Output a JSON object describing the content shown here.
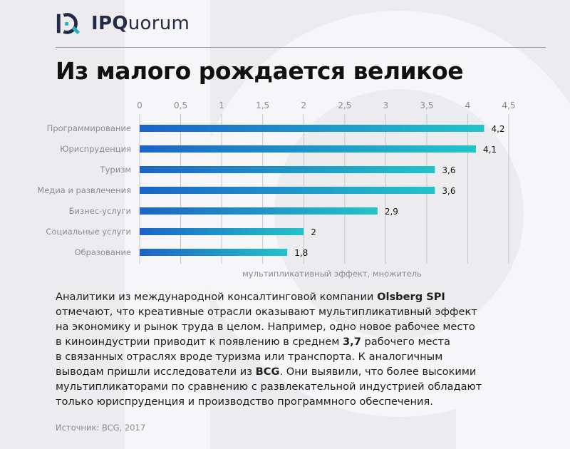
{
  "header": {
    "brand_bold": "IPQ",
    "brand_rest": "uorum"
  },
  "title": "Из малого рождается великое",
  "chart_data": {
    "type": "bar",
    "orientation": "horizontal",
    "categories": [
      "Программирование",
      "Юриспруденция",
      "Туризм",
      "Медиа и развлечения",
      "Бизнес-услуги",
      "Социальные услуги",
      "Образование"
    ],
    "values": [
      4.2,
      4.1,
      3.6,
      3.6,
      2.9,
      2,
      1.8
    ],
    "value_labels": [
      "4,2",
      "4,1",
      "3,6",
      "3,6",
      "2,9",
      "2",
      "1,8"
    ],
    "xlim": [
      0,
      4.5
    ],
    "ticks": [
      0,
      0.5,
      1,
      1.5,
      2,
      2.5,
      3,
      3.5,
      4,
      4.5
    ],
    "tick_labels": [
      "0",
      "0,5",
      "1",
      "1,5",
      "2",
      "2,5",
      "3",
      "3,5",
      "4",
      "4,5"
    ],
    "xlabel": "мультипликативный эффект, множитель",
    "grid": true,
    "tick_position": "top",
    "colors": {
      "bar_start": "#1b64c8",
      "bar_end": "#22c4c8",
      "grid": "#c6c6cc"
    }
  },
  "body": {
    "lines": [
      [
        "Аналитики из международной консалтинговой компании ",
        "**Olsberg SPI**"
      ],
      [
        "отмечают, что креативные отрасли оказывают мультипликативный эффект"
      ],
      [
        "на экономику и рынок труда в целом. Например, одно новое рабочее место"
      ],
      [
        "в киноиндустрии приводит к появлению в среднем ",
        "**3,7**",
        " рабочего места"
      ],
      [
        "в связанных отраслях вроде туризма или транспорта. К аналогичным"
      ],
      [
        "выводам пришли исследователи из ",
        "**BCG**",
        ". Они выявили, что более высокими"
      ],
      [
        "мультипликаторами по сравнению с развлекательной индустрией обладают"
      ],
      [
        "только юриспруденция и производство программного обеспечения."
      ]
    ]
  },
  "source": "Источник: BCG, 2017",
  "colors": {
    "background": "#ececee",
    "brand": "#232b47",
    "logo_accent": "#1fb5c6",
    "watermark": "#ffffff"
  }
}
